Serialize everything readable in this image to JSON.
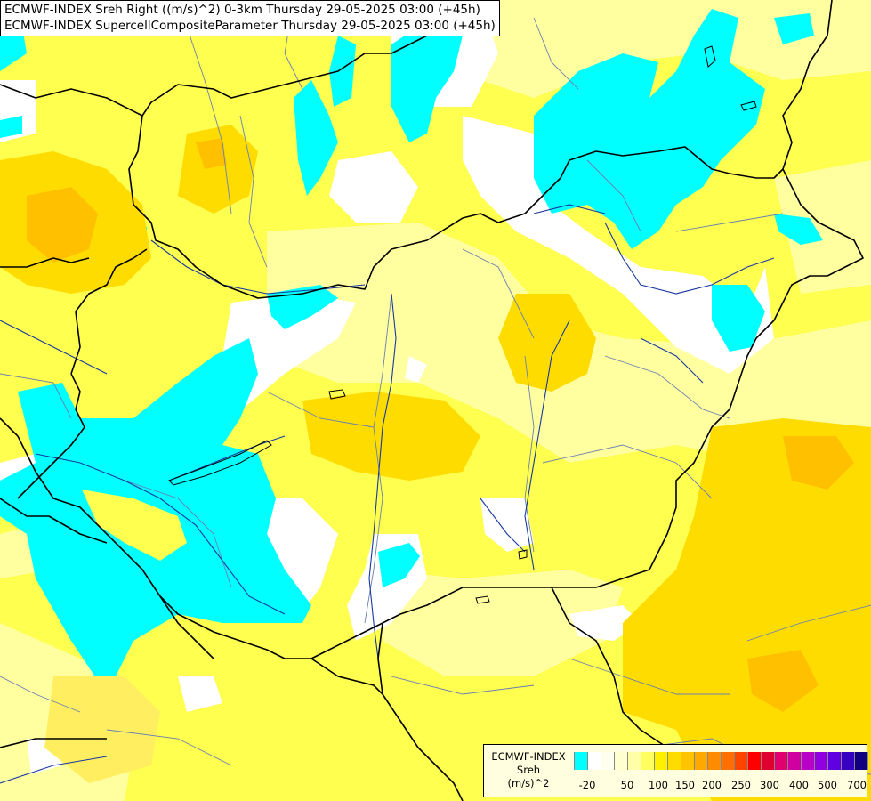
{
  "title": {
    "line1": "ECMWF-INDEX Sreh Right ((m/s)^2) 0-3km Thursday 29-05-2025 03:00 (+45h)",
    "line2": "ECMWF-INDEX SupercellCompositeParameter Thursday 29-05-2025 03:00 (+45h)"
  },
  "legend": {
    "source": "ECMWF-INDEX",
    "variable": "Sreh",
    "unit": "(m/s)^2",
    "colors": [
      "#00ffff",
      "#ffffff",
      "#fffff0",
      "#ffffd0",
      "#ffffa8",
      "#ffff60",
      "#fff000",
      "#ffdc00",
      "#ffc400",
      "#ffa800",
      "#ff8c00",
      "#ff7000",
      "#ff4400",
      "#ff0000",
      "#e00030",
      "#e00070",
      "#d000a0",
      "#b800c8",
      "#9000e0",
      "#6000e0",
      "#3800c0",
      "#100080"
    ],
    "ticks": [
      "-20",
      "50",
      "100",
      "150",
      "200",
      "250",
      "300",
      "400",
      "500",
      "700"
    ]
  },
  "colors": {
    "cyan": "#00ffff",
    "white": "#ffffff",
    "pale": "#ffffa0",
    "light_yellow": "#ffff50",
    "yellow": "#ffee00",
    "gold": "#ffd200",
    "orange": "#ffbc00",
    "border": "#000000",
    "river": "#2040a0",
    "region": "#6080b0"
  }
}
